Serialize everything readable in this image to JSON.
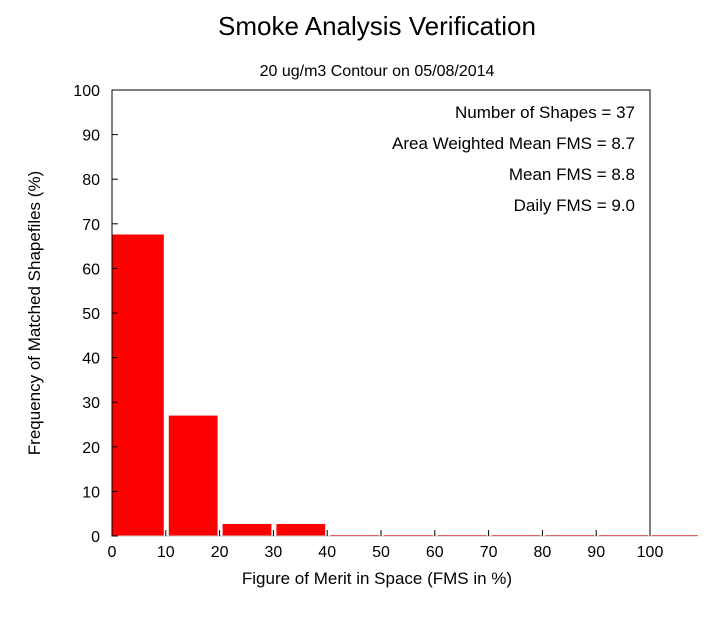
{
  "chart_data": {
    "type": "bar",
    "title": "Smoke Analysis Verification",
    "subtitle": "20 ug/m3 Contour on 05/08/2014",
    "xlabel": "Figure of Merit in Space (FMS in %)",
    "ylabel": "Frequency of Matched Shapefiles (%)",
    "xlim": [
      0,
      100
    ],
    "ylim": [
      0,
      100
    ],
    "xticks": [
      0,
      10,
      20,
      30,
      40,
      50,
      60,
      70,
      80,
      90,
      100
    ],
    "yticks": [
      0,
      10,
      20,
      30,
      40,
      50,
      60,
      70,
      80,
      90,
      100
    ],
    "bins": [
      {
        "start": 0,
        "end": 10,
        "value": 67.6
      },
      {
        "start": 10,
        "end": 20,
        "value": 27.0
      },
      {
        "start": 20,
        "end": 30,
        "value": 2.7
      },
      {
        "start": 30,
        "end": 40,
        "value": 2.7
      },
      {
        "start": 40,
        "end": 50,
        "value": 0
      },
      {
        "start": 50,
        "end": 60,
        "value": 0
      },
      {
        "start": 60,
        "end": 70,
        "value": 0
      },
      {
        "start": 70,
        "end": 80,
        "value": 0
      },
      {
        "start": 80,
        "end": 90,
        "value": 0
      },
      {
        "start": 90,
        "end": 100,
        "value": 0
      }
    ],
    "bar_color": "#ff0000",
    "grid": false,
    "annotations": [
      "Number of Shapes = 37",
      "Area Weighted Mean FMS = 8.7",
      "Mean FMS = 8.8",
      "Daily FMS = 9.0"
    ]
  }
}
